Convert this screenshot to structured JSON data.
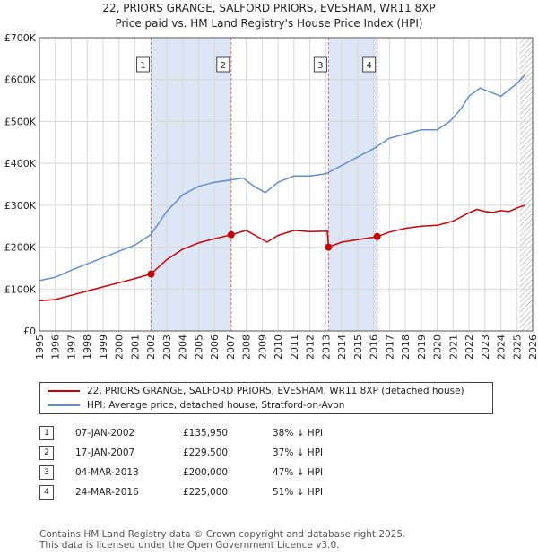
{
  "title_line1": "22, PRIORS GRANGE, SALFORD PRIORS, EVESHAM, WR11 8XP",
  "title_line2": "Price paid vs. HM Land Registry's House Price Index (HPI)",
  "legend": {
    "property_label": "22, PRIORS GRANGE, SALFORD PRIORS, EVESHAM, WR11 8XP (detached house)",
    "hpi_label": "HPI: Average price, detached house, Stratford-on-Avon"
  },
  "colors": {
    "property": "#cc0000",
    "hpi": "#5b8fce",
    "shade": "#dde6f4",
    "marker_line": "#e06666"
  },
  "transactions": [
    {
      "n": "1",
      "date": "07-JAN-2002",
      "price": "£135,950",
      "hpi": "38% ↓ HPI"
    },
    {
      "n": "2",
      "date": "17-JAN-2007",
      "price": "£229,500",
      "hpi": "37% ↓ HPI"
    },
    {
      "n": "3",
      "date": "04-MAR-2013",
      "price": "£200,000",
      "hpi": "47% ↓ HPI"
    },
    {
      "n": "4",
      "date": "24-MAR-2016",
      "price": "£225,000",
      "hpi": "51% ↓ HPI"
    }
  ],
  "footer_line1": "Contains HM Land Registry data © Crown copyright and database right 2025.",
  "footer_line2": "This data is licensed under the Open Government Licence v3.0.",
  "chart_data": {
    "type": "line",
    "xlim": [
      1995,
      2026
    ],
    "ylim": [
      0,
      700000
    ],
    "x_ticks": [
      "1995",
      "1996",
      "1997",
      "1998",
      "1999",
      "2000",
      "2001",
      "2002",
      "2003",
      "2004",
      "2005",
      "2006",
      "2007",
      "2008",
      "2009",
      "2010",
      "2011",
      "2012",
      "2013",
      "2014",
      "2015",
      "2016",
      "2017",
      "2018",
      "2019",
      "2020",
      "2021",
      "2022",
      "2023",
      "2024",
      "2025",
      "2026"
    ],
    "y_ticks": [
      {
        "value": 0,
        "label": "£0"
      },
      {
        "value": 100000,
        "label": "£100K"
      },
      {
        "value": 200000,
        "label": "£200K"
      },
      {
        "value": 300000,
        "label": "£300K"
      },
      {
        "value": 400000,
        "label": "£400K"
      },
      {
        "value": 500000,
        "label": "£500K"
      },
      {
        "value": 600000,
        "label": "£600K"
      },
      {
        "value": 700000,
        "label": "£700K"
      }
    ],
    "shaded_periods": [
      [
        2002.02,
        2007.05
      ],
      [
        2013.17,
        2016.23
      ]
    ],
    "forecast_start": 2025.2,
    "sales": [
      {
        "label": "1",
        "x": 2002.02,
        "y": 135950
      },
      {
        "label": "2",
        "x": 2007.05,
        "y": 229500
      },
      {
        "label": "3",
        "x": 2013.17,
        "y": 200000
      },
      {
        "label": "4",
        "x": 2016.23,
        "y": 225000
      }
    ],
    "series": [
      {
        "name": "HPI: Average price, detached house, Stratford-on-Avon",
        "x": [
          1995,
          1996,
          1997,
          1998,
          1999,
          2000,
          2001,
          2002,
          2003,
          2004,
          2005,
          2006,
          2007,
          2007.8,
          2008.5,
          2009.2,
          2010,
          2011,
          2012,
          2013,
          2014,
          2015,
          2016,
          2017,
          2018,
          2019,
          2020,
          2020.8,
          2021.5,
          2022,
          2022.7,
          2023,
          2023.7,
          2024,
          2024.5,
          2025,
          2025.5
        ],
        "y": [
          120000,
          128000,
          145000,
          160000,
          175000,
          190000,
          205000,
          230000,
          285000,
          325000,
          345000,
          355000,
          360000,
          365000,
          345000,
          330000,
          355000,
          370000,
          370000,
          375000,
          395000,
          415000,
          435000,
          460000,
          470000,
          480000,
          480000,
          500000,
          530000,
          560000,
          580000,
          575000,
          565000,
          560000,
          575000,
          590000,
          610000
        ]
      },
      {
        "name": "22, PRIORS GRANGE, SALFORD PRIORS, EVESHAM, WR11 8XP (detached house)",
        "x": [
          1995,
          1996,
          1997,
          1998,
          1999,
          2000,
          2001,
          2002.02,
          2003,
          2004,
          2005,
          2006,
          2007.05,
          2008,
          2008.7,
          2009.3,
          2010,
          2011,
          2012,
          2013.1,
          2013.17,
          2014,
          2015,
          2016.23,
          2017,
          2018,
          2019,
          2020,
          2021,
          2022,
          2022.5,
          2023,
          2023.5,
          2024,
          2024.5,
          2025,
          2025.5
        ],
        "y": [
          72000,
          75000,
          85000,
          95000,
          105000,
          115000,
          125000,
          135950,
          170000,
          195000,
          210000,
          220000,
          229500,
          240000,
          225000,
          212000,
          228000,
          240000,
          237000,
          238000,
          200000,
          212000,
          218000,
          225000,
          236000,
          245000,
          250000,
          252000,
          262000,
          282000,
          290000,
          285000,
          283000,
          287000,
          285000,
          293000,
          300000
        ]
      }
    ]
  }
}
